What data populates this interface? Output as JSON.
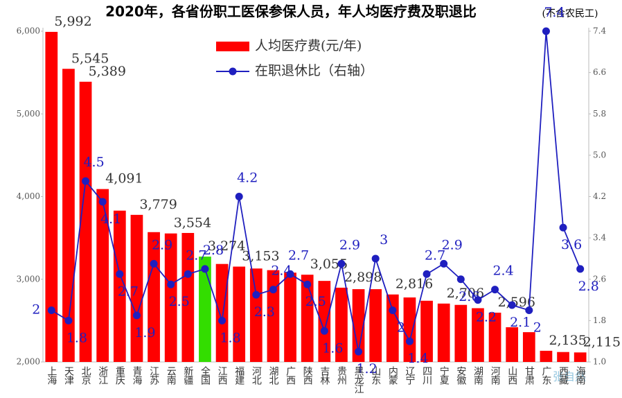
{
  "chart_data": {
    "type": "bar-line",
    "title": "2020年，各省份职工医保参保人员，年人均医疗费及职退比",
    "subtitle": "(不含农民工)",
    "watermark": "张自然",
    "categories": [
      "上海",
      "天津",
      "北京",
      "浙江",
      "重庆",
      "青海",
      "江苏",
      "云南",
      "新疆",
      "全国",
      "江西",
      "福建",
      "河北",
      "湖北",
      "广西",
      "陕西",
      "吉林",
      "贵州",
      "黑龙江",
      "山东",
      "内蒙",
      "辽宁",
      "四川",
      "宁夏",
      "安徽",
      "湖南",
      "河南",
      "山西",
      "甘肃",
      "广东",
      "西藏",
      "海南"
    ],
    "series": [
      {
        "name": "人均医疗费(元/年)",
        "color": "#ff0000",
        "colors": [
          "#ff0000",
          "#ff0000",
          "#ff0000",
          "#ff0000",
          "#ff0000",
          "#ff0000",
          "#ff0000",
          "#ff0000",
          "#ff0000",
          "#33dd00",
          "#ff0000",
          "#ff0000",
          "#ff0000",
          "#ff0000",
          "#ff0000",
          "#ff0000",
          "#ff0000",
          "#ff0000",
          "#ff0000",
          "#ff0000",
          "#ff0000",
          "#ff0000",
          "#ff0000",
          "#ff0000",
          "#ff0000",
          "#ff0000",
          "#ff0000",
          "#ff0000",
          "#ff0000",
          "#ff0000",
          "#ff0000",
          "#ff0000"
        ],
        "values": [
          5992,
          5545,
          5389,
          4091,
          3830,
          3779,
          3570,
          3554,
          3560,
          3274,
          3185,
          3153,
          3130,
          3110,
          3080,
          3055,
          2980,
          2898,
          2880,
          2880,
          2816,
          2780,
          2740,
          2706,
          2690,
          2650,
          2596,
          2420,
          2360,
          2135,
          2120,
          2115
        ],
        "value_labels": [
          "5,992",
          "5,545",
          "5,389",
          "4,091",
          null,
          "3,779",
          null,
          "3,554",
          null,
          "3,274",
          null,
          "3,153",
          null,
          null,
          null,
          "3,055",
          null,
          "2,898",
          null,
          null,
          "2,816",
          null,
          null,
          "2,706",
          null,
          null,
          "2,596",
          null,
          null,
          "2,135",
          null,
          "2,115"
        ]
      },
      {
        "name": "在职退休比（右轴）",
        "color": "#1f1fbf",
        "axis": "y2",
        "values": [
          2,
          1.8,
          4.5,
          4.1,
          2.7,
          1.9,
          2.9,
          2.5,
          2.7,
          2.8,
          1.8,
          4.2,
          2.3,
          2.4,
          2.7,
          2.5,
          1.6,
          2.9,
          1.2,
          3,
          2,
          1.4,
          2.7,
          2.9,
          2.6,
          2.2,
          2.4,
          2.1,
          2,
          7.4,
          3.6,
          2.8
        ]
      }
    ],
    "ylim": [
      2000,
      6000
    ],
    "yticks": [
      {
        "value": 2000,
        "label": "2,000"
      },
      {
        "value": 3000,
        "label": "3,000"
      },
      {
        "value": 4000,
        "label": "4,000"
      },
      {
        "value": 5000,
        "label": "5,000"
      },
      {
        "value": 6000,
        "label": "6,000"
      }
    ],
    "y2lim": [
      1.0,
      7.4
    ],
    "y2ticks": [
      {
        "value": 1.0,
        "label": "1.0"
      },
      1.8,
      2.6,
      3.4,
      4.2,
      {
        "value": 5.0,
        "label": "5.0"
      },
      5.8,
      6.6,
      7.4
    ]
  }
}
